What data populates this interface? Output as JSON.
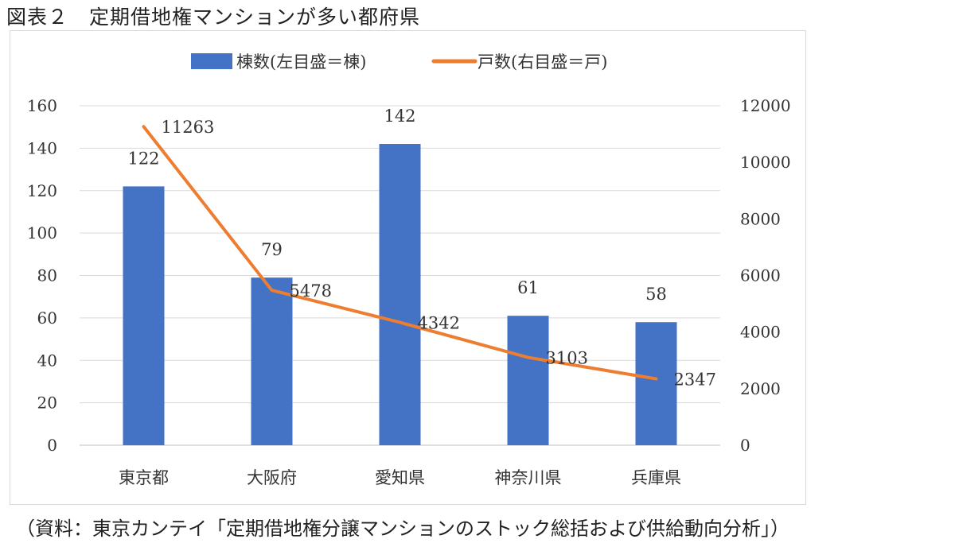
{
  "title": "図表２　定期借地権マンションが多い都府県",
  "source": "（資料：東京カンテイ「定期借地権分譲マンションのストック総括および供給動向分析」）",
  "chart_data": {
    "type": "bar+line",
    "categories": [
      "東京都",
      "大阪府",
      "愛知県",
      "神奈川県",
      "兵庫県"
    ],
    "series": [
      {
        "name": "棟数(左目盛＝棟)",
        "type": "bar",
        "axis": "left",
        "color": "#4472C4",
        "values": [
          122,
          79,
          142,
          61,
          58
        ]
      },
      {
        "name": "戸数(右目盛＝戸)",
        "type": "line",
        "axis": "right",
        "color": "#ED7D31",
        "values": [
          11263,
          5478,
          4342,
          3103,
          2347
        ]
      }
    ],
    "y_left": {
      "range": [
        0,
        160
      ],
      "ticks": [
        0,
        20,
        40,
        60,
        80,
        100,
        120,
        140,
        160
      ]
    },
    "y_right": {
      "range": [
        0,
        12000
      ],
      "ticks": [
        0,
        2000,
        4000,
        6000,
        8000,
        10000,
        12000
      ]
    },
    "grid": true,
    "legend": "top"
  }
}
